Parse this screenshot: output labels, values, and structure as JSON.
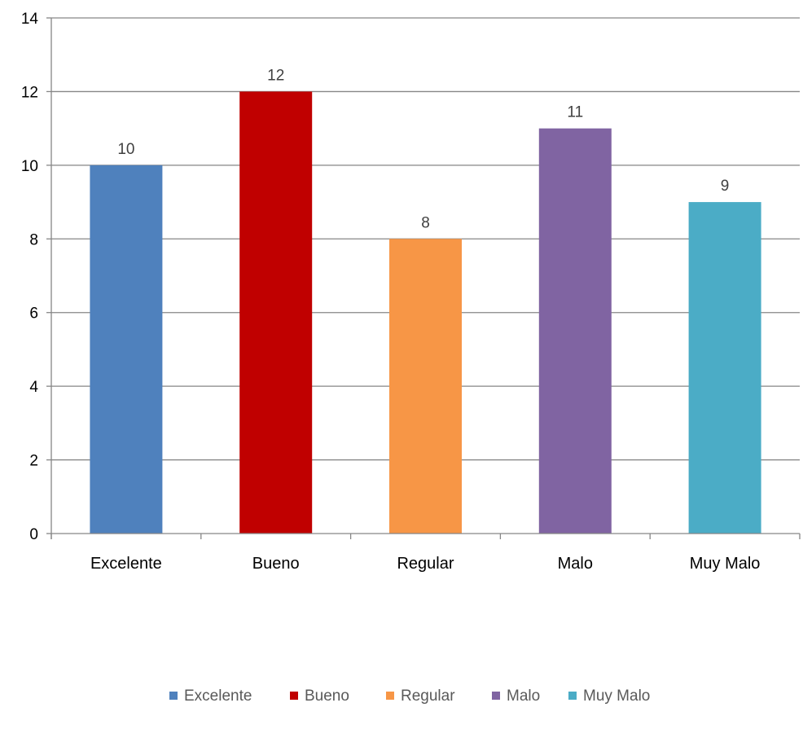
{
  "chart_data": {
    "type": "bar",
    "categories": [
      "Excelente",
      "Bueno",
      "Regular",
      "Malo",
      "Muy Malo"
    ],
    "values": [
      10,
      12,
      8,
      11,
      9
    ],
    "data_labels": [
      "10",
      "12",
      "8",
      "11",
      "9"
    ],
    "colors": [
      "#4F81BD",
      "#C00000",
      "#F79646",
      "#8064A2",
      "#4BACC6"
    ],
    "ylim": [
      0,
      14
    ],
    "y_ticks": [
      0,
      2,
      4,
      6,
      8,
      10,
      12,
      14
    ],
    "y_tick_labels": [
      "0",
      "2",
      "4",
      "6",
      "8",
      "10",
      "12",
      "14"
    ],
    "grid": true,
    "legend": {
      "position": "bottom",
      "entries": [
        "Excelente",
        "Bueno",
        "Regular",
        "Malo",
        "Muy Malo"
      ]
    },
    "title": "",
    "xlabel": "",
    "ylabel": ""
  }
}
